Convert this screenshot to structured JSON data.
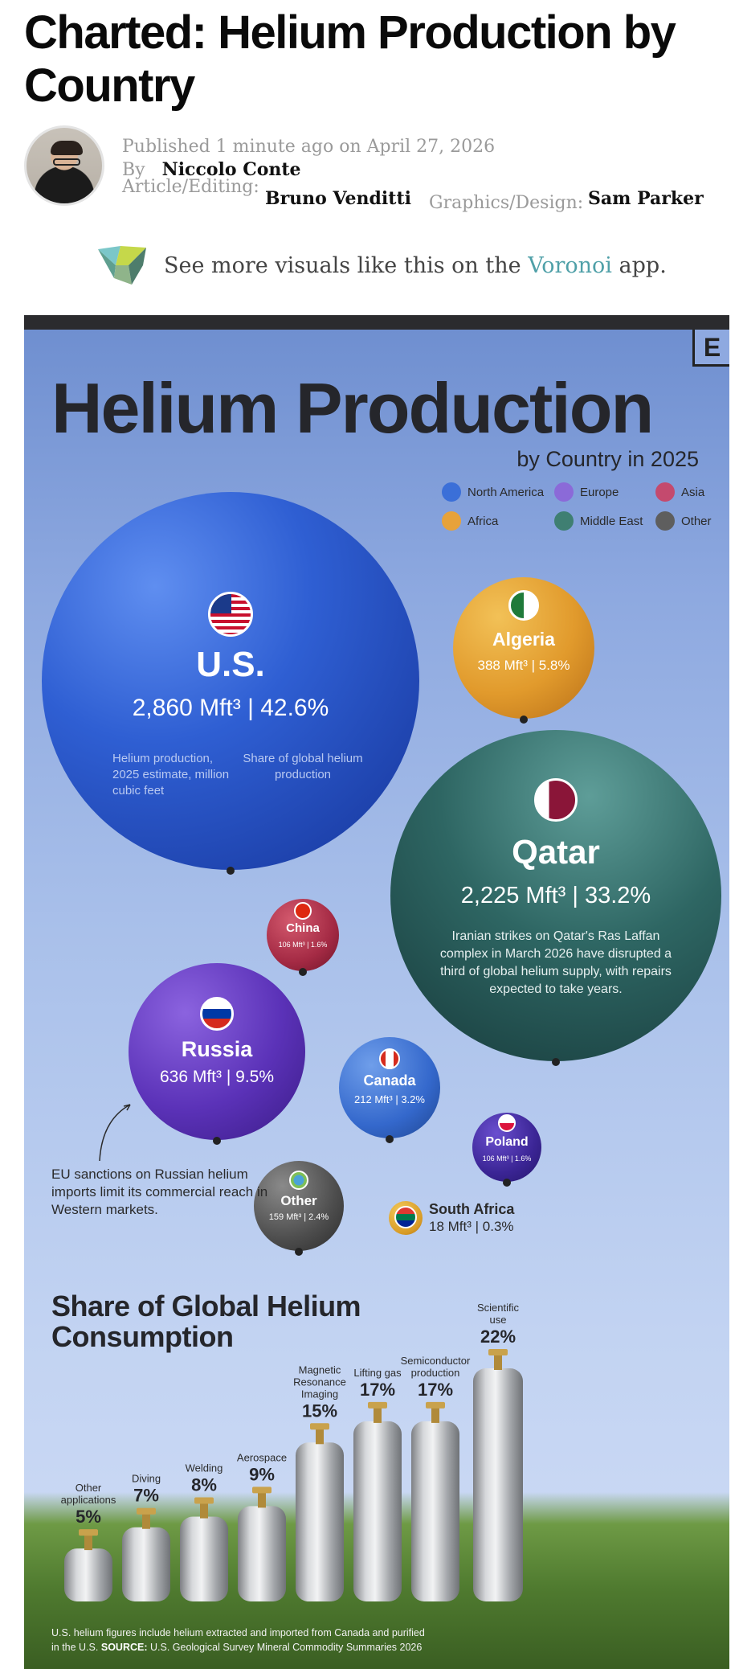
{
  "article": {
    "title": "Charted: Helium Production by Country",
    "published": "Published 1 minute ago on April 27, 2026",
    "by_prefix": "By",
    "author": "Niccolo Conte",
    "editing_label": "Article/Editing:",
    "editor": "Bruno Venditti",
    "graphics_label": "Graphics/Design:",
    "designer": "Sam Parker"
  },
  "voronoi": {
    "text_before": "See more visuals like this on the",
    "link": "Voronoi",
    "text_after": "app."
  },
  "infographic": {
    "brand": "E",
    "title": "Helium Production",
    "subtitle": "by Country in 2025",
    "legend": [
      {
        "label": "North America",
        "color": "#3b6fd8"
      },
      {
        "label": "Europe",
        "color": "#8b6ad8"
      },
      {
        "label": "Asia",
        "color": "#c44a6e"
      },
      {
        "label": "Africa",
        "color": "#e7a23a"
      },
      {
        "label": "Middle East",
        "color": "#3f7f72"
      },
      {
        "label": "Other",
        "color": "#5e5e5e"
      }
    ],
    "balloons": {
      "us": {
        "name": "U.S.",
        "value": "2,860 Mft³",
        "share": "42.6%",
        "note_left": "Helium production, 2025 estimate, million cubic feet",
        "note_right": "Share of global helium production"
      },
      "algeria": {
        "name": "Algeria",
        "value": "388 Mft³",
        "share": "5.8%"
      },
      "qatar": {
        "name": "Qatar",
        "value": "2,225 Mft³",
        "share": "33.2%",
        "note": "Iranian strikes on Qatar's Ras Laffan complex in March 2026 have disrupted a third of global helium supply, with repairs expected to take years."
      },
      "china": {
        "name": "China",
        "value": "106 Mft³",
        "share": "1.6%"
      },
      "russia": {
        "name": "Russia",
        "value": "636 Mft³",
        "share": "9.5%"
      },
      "canada": {
        "name": "Canada",
        "value": "212 Mft³",
        "share": "3.2%"
      },
      "poland": {
        "name": "Poland",
        "value": "106 Mft³",
        "share": "1.6%"
      },
      "other": {
        "name": "Other",
        "value": "159 Mft³",
        "share": "2.4%"
      },
      "south_africa": {
        "name": "South Africa",
        "value": "18 Mft³",
        "share": "0.3%"
      }
    },
    "russia_note": "EU sanctions on Russian helium imports limit its commercial reach in Western markets.",
    "consumption_title": "Share of Global Helium Consumption",
    "footnote_1": "U.S. helium figures include helium extracted and imported from Canada and purified",
    "footnote_2_prefix": "in the U.S.",
    "footnote_source_label": "SOURCE:",
    "footnote_source": "U.S. Geological Survey Mineral Commodity Summaries 2026"
  },
  "chart_data": [
    {
      "type": "bubble",
      "title": "Helium Production",
      "subtitle": "by Country in 2025",
      "unit": "Mft³",
      "points": [
        {
          "label": "U.S.",
          "value": 2860,
          "share": 42.6,
          "region": "North America"
        },
        {
          "label": "Qatar",
          "value": 2225,
          "share": 33.2,
          "region": "Middle East"
        },
        {
          "label": "Russia",
          "value": 636,
          "share": 9.5,
          "region": "Europe"
        },
        {
          "label": "Algeria",
          "value": 388,
          "share": 5.8,
          "region": "Africa"
        },
        {
          "label": "Canada",
          "value": 212,
          "share": 3.2,
          "region": "North America"
        },
        {
          "label": "Other",
          "value": 159,
          "share": 2.4,
          "region": "Other"
        },
        {
          "label": "China",
          "value": 106,
          "share": 1.6,
          "region": "Asia"
        },
        {
          "label": "Poland",
          "value": 106,
          "share": 1.6,
          "region": "Europe"
        },
        {
          "label": "South Africa",
          "value": 18,
          "share": 0.3,
          "region": "Africa"
        }
      ]
    },
    {
      "type": "bar",
      "title": "Share of Global Helium Consumption",
      "categories": [
        "Other applications",
        "Diving",
        "Welding",
        "Aerospace",
        "Magnetic Resonance Imaging",
        "Lifting gas",
        "Semiconductor production",
        "Scientific use"
      ],
      "values": [
        5,
        7,
        8,
        9,
        15,
        17,
        17,
        22
      ],
      "unit": "%"
    }
  ]
}
